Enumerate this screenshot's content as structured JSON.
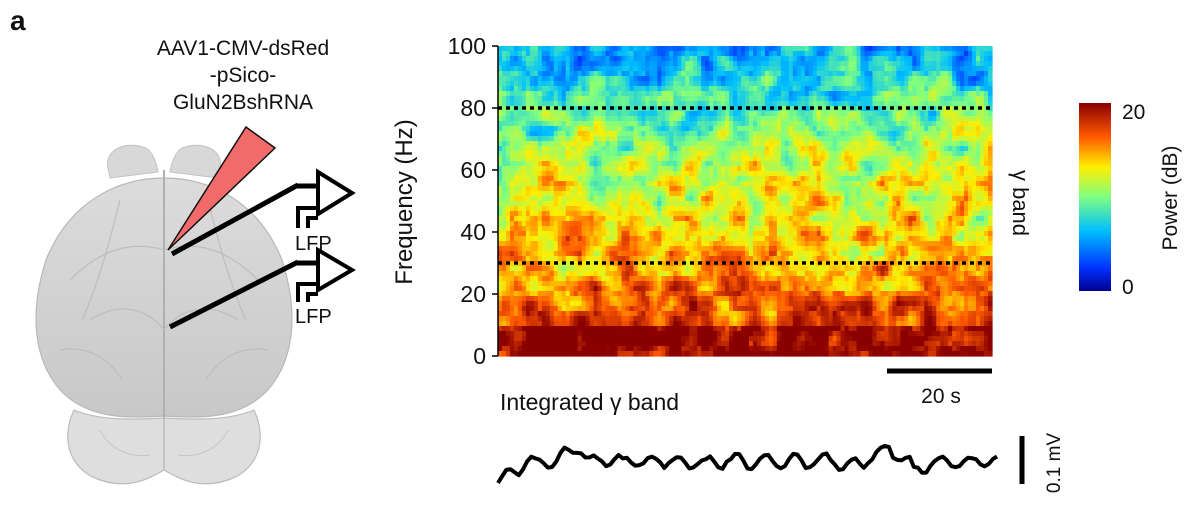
{
  "panel_label": "a",
  "injection": {
    "line1": "AAV1-CMV-dsRed",
    "line2": "-pSico-",
    "line3": "GluN2BshRNA"
  },
  "electrodes": [
    {
      "label": "LFP"
    },
    {
      "label": "LFP"
    }
  ],
  "spectrogram": {
    "ylabel": "Frequency (Hz)",
    "yticks": [
      "0",
      "20",
      "40",
      "60",
      "80",
      "100"
    ],
    "ylim": [
      0,
      100
    ],
    "gamma_band_hz": [
      30,
      80
    ],
    "gamma_label": "γ band",
    "time_scalebar": "20 s"
  },
  "colorbar": {
    "label": "Power (dB)",
    "max_label": "20",
    "min_label": "0",
    "range_db": [
      0,
      20
    ]
  },
  "trace": {
    "title": "Integrated γ band",
    "scalebar": "0.1 mV"
  },
  "colors": {
    "injection_pipette": "#f26b6b",
    "lines": "#000000",
    "brain_fill": "#d4d4d4"
  }
}
